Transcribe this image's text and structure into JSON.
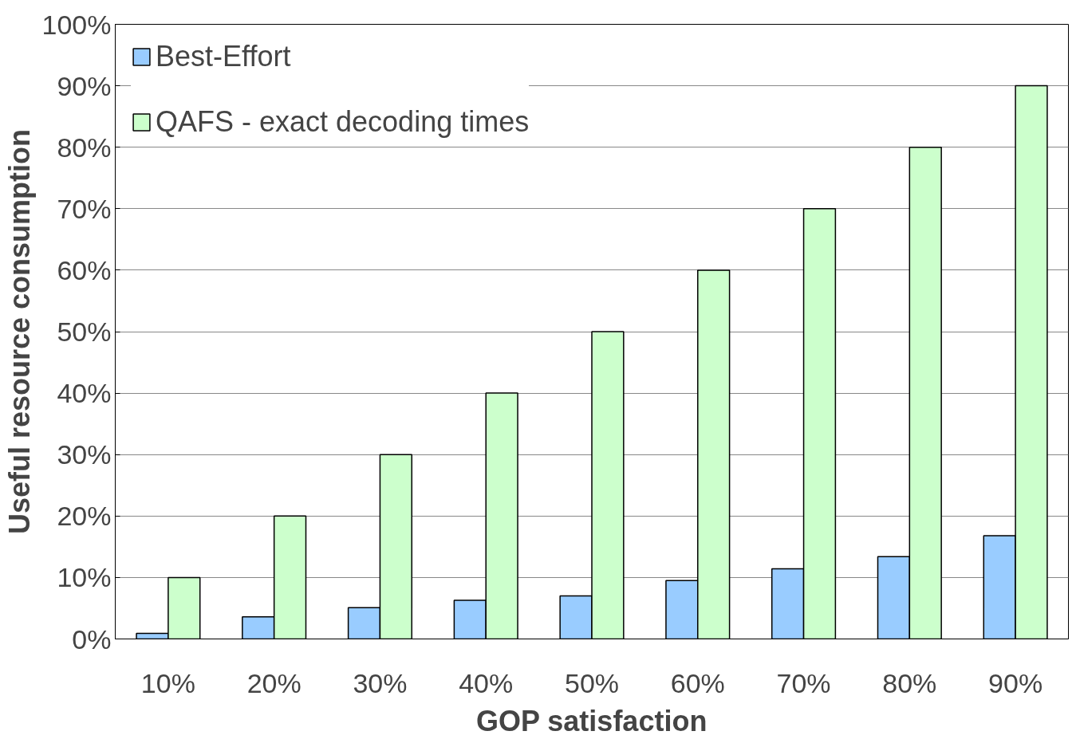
{
  "chart_data": {
    "type": "bar",
    "xlabel": "GOP satisfaction",
    "ylabel": "Useful resource consumption",
    "categories": [
      "10%",
      "20%",
      "30%",
      "40%",
      "50%",
      "60%",
      "70%",
      "80%",
      "90%"
    ],
    "series": [
      {
        "name": "Best-Effort",
        "color": "#99ccff",
        "values": [
          0.9,
          3.6,
          5.1,
          6.3,
          7.0,
          9.5,
          11.4,
          13.4,
          16.8
        ]
      },
      {
        "name": "QAFS - exact decoding times",
        "color": "#ccffcc",
        "values": [
          10,
          20,
          30,
          40,
          50,
          60,
          70,
          80,
          90
        ]
      }
    ],
    "ylim": [
      0,
      100
    ],
    "yticks": [
      {
        "value": 0,
        "label": "0%"
      },
      {
        "value": 10,
        "label": "10%"
      },
      {
        "value": 20,
        "label": "20%"
      },
      {
        "value": 30,
        "label": "30%"
      },
      {
        "value": 40,
        "label": "40%"
      },
      {
        "value": 50,
        "label": "50%"
      },
      {
        "value": 60,
        "label": "60%"
      },
      {
        "value": 70,
        "label": "70%"
      },
      {
        "value": 80,
        "label": "80%"
      },
      {
        "value": 90,
        "label": "90%"
      },
      {
        "value": 100,
        "label": "100%"
      }
    ],
    "grid": "y",
    "legend": "top left"
  }
}
